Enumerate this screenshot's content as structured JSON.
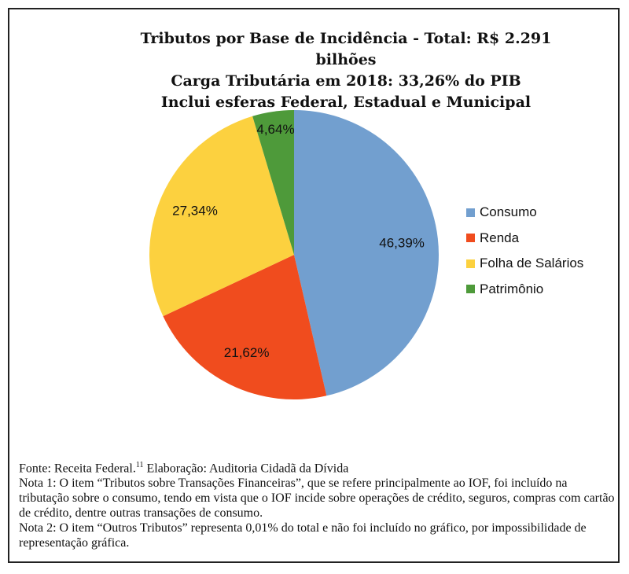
{
  "chart_data": {
    "type": "pie",
    "title": [
      "Tributos por Base de Incidência - Total: R$ 2.291 bilhões",
      "Carga Tributária em 2018: 33,26% do PIB",
      "Inclui esferas Federal, Estadual e Municipal"
    ],
    "categories": [
      "Consumo",
      "Renda",
      "Folha de Salários",
      "Patrimônio"
    ],
    "values": [
      46.39,
      21.62,
      27.34,
      4.64
    ],
    "data_labels": [
      "46,39%",
      "21,62%",
      "27,34%",
      "4,64%"
    ],
    "colors": [
      "#729fcf",
      "#f04c1e",
      "#fcd13f",
      "#4e9a3a"
    ],
    "start_angle": "12 o'clock, clockwise",
    "legend_position": "right"
  },
  "notes": {
    "source_prefix": "Fonte: Receita Federal.",
    "source_ref": "11",
    "source_suffix": " Elaboração: Auditoria Cidadã da Dívida",
    "note1": "Nota 1: O item “Tributos sobre Transações Financeiras”, que se refere principalmente ao IOF, foi incluído na tributação sobre o consumo, tendo em vista que o IOF incide sobre operações de crédito, seguros, compras com cartão de crédito, dentre outras transações de consumo.",
    "note2": "Nota 2: O item “Outros Tributos” representa 0,01% do total e não foi incluído no gráfico, por impossibilidade de representação gráfica."
  }
}
